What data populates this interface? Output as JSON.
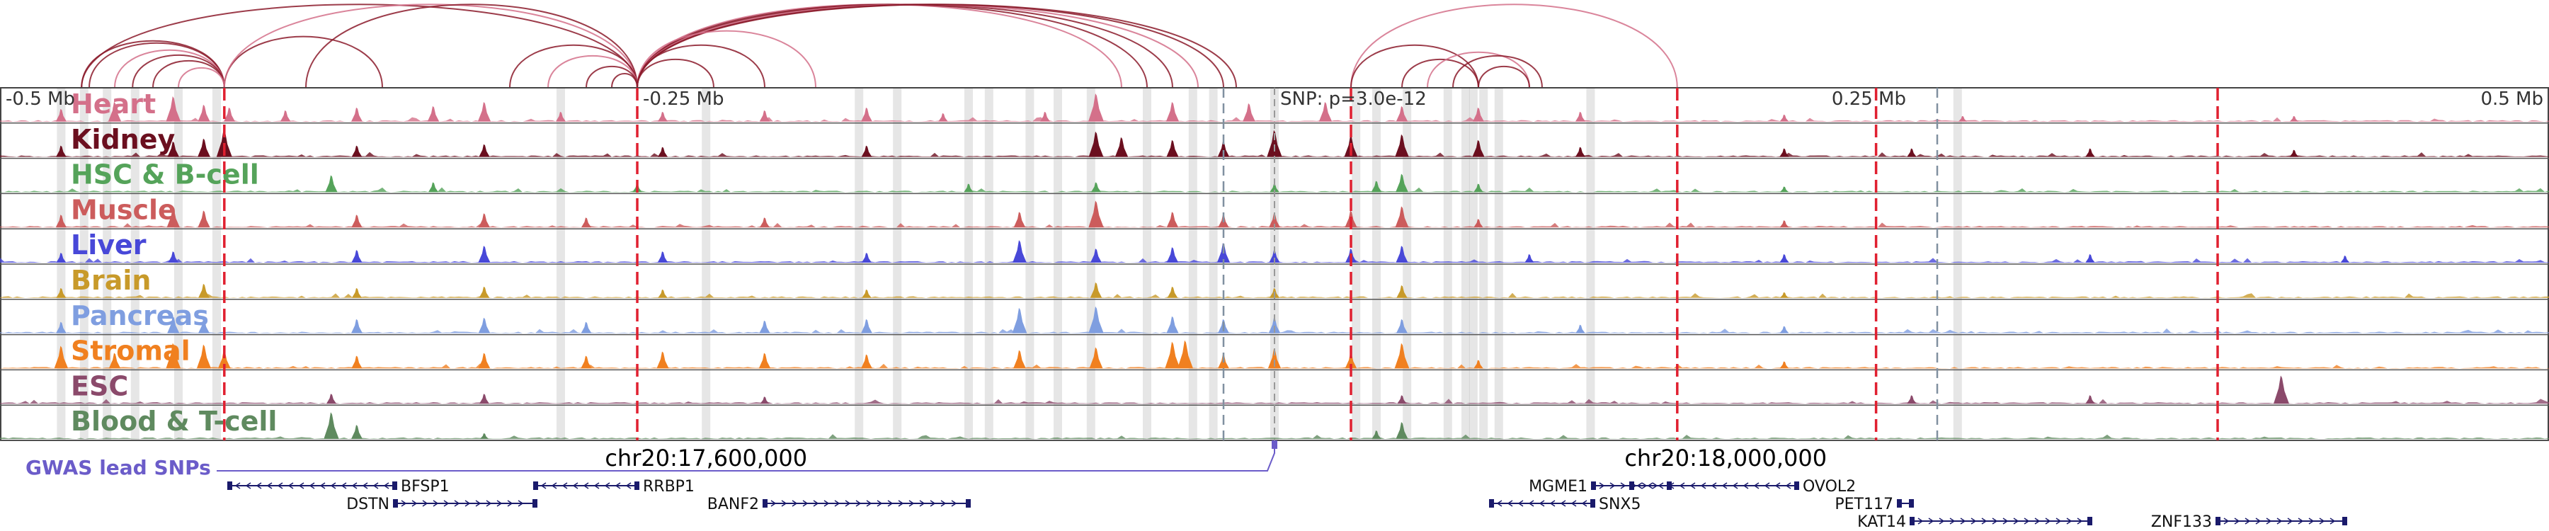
{
  "chart_data": {
    "type": "genome-browser",
    "chromosome": "chr20",
    "xlim_offset_mb": [
      -0.5,
      0.5
    ],
    "scale_labels": [
      {
        "text": "-0.5 Mb",
        "offset_mb": -0.5,
        "align": "start"
      },
      {
        "text": "-0.25 Mb",
        "offset_mb": -0.25,
        "align": "start"
      },
      {
        "text": "0.25 Mb",
        "offset_mb": 0.25,
        "align": "end"
      },
      {
        "text": "0.5 Mb",
        "offset_mb": 0.5,
        "align": "end"
      }
    ],
    "snp_label": "SNP: p=3.0e-12",
    "snp_offset_mb": 0.0,
    "coordinate_labels": [
      {
        "text": "chr20:17,600,000",
        "offset_mb": -0.223
      },
      {
        "text": "chr20:18,000,000",
        "offset_mb": 0.177
      }
    ],
    "tracks": [
      {
        "name": "Heart",
        "color": "#d4708a",
        "peaks": [
          [
            -0.476,
            0.45
          ],
          [
            -0.455,
            0.7
          ],
          [
            -0.432,
            0.9
          ],
          [
            -0.42,
            0.6
          ],
          [
            -0.41,
            0.5
          ],
          [
            -0.388,
            0.4
          ],
          [
            -0.36,
            0.5
          ],
          [
            -0.33,
            0.55
          ],
          [
            -0.31,
            0.7
          ],
          [
            -0.28,
            0.35
          ],
          [
            -0.24,
            0.35
          ],
          [
            -0.2,
            0.4
          ],
          [
            -0.16,
            0.5
          ],
          [
            -0.13,
            0.3
          ],
          [
            -0.09,
            0.35
          ],
          [
            -0.07,
            1.0
          ],
          [
            -0.04,
            0.7
          ],
          [
            -0.01,
            0.65
          ],
          [
            0.02,
            0.7
          ],
          [
            0.05,
            0.55
          ],
          [
            0.08,
            0.5
          ],
          [
            0.12,
            0.35
          ],
          [
            0.2,
            0.25
          ],
          [
            0.27,
            0.2
          ],
          [
            0.4,
            0.2
          ]
        ]
      },
      {
        "name": "Kidney",
        "color": "#6b0f1f",
        "peaks": [
          [
            -0.476,
            0.4
          ],
          [
            -0.432,
            0.55
          ],
          [
            -0.42,
            0.65
          ],
          [
            -0.412,
            1.0
          ],
          [
            -0.36,
            0.4
          ],
          [
            -0.31,
            0.45
          ],
          [
            -0.24,
            0.35
          ],
          [
            -0.16,
            0.4
          ],
          [
            -0.07,
            0.9
          ],
          [
            -0.06,
            0.7
          ],
          [
            -0.04,
            0.6
          ],
          [
            -0.02,
            0.55
          ],
          [
            0.0,
            0.95
          ],
          [
            0.03,
            0.75
          ],
          [
            0.05,
            0.8
          ],
          [
            0.08,
            0.6
          ],
          [
            0.12,
            0.35
          ],
          [
            0.2,
            0.3
          ],
          [
            0.25,
            0.3
          ],
          [
            0.32,
            0.3
          ],
          [
            0.4,
            0.25
          ]
        ]
      },
      {
        "name": "HSC & B-cell",
        "color": "#55a35a",
        "peaks": [
          [
            -0.37,
            0.6
          ],
          [
            -0.33,
            0.35
          ],
          [
            -0.25,
            0.3
          ],
          [
            -0.12,
            0.3
          ],
          [
            -0.07,
            0.35
          ],
          [
            0.0,
            0.3
          ],
          [
            0.04,
            0.4
          ],
          [
            0.05,
            0.65
          ],
          [
            0.08,
            0.3
          ],
          [
            0.2,
            0.2
          ]
        ]
      },
      {
        "name": "Muscle",
        "color": "#cc5c5c",
        "peaks": [
          [
            -0.476,
            0.45
          ],
          [
            -0.432,
            0.7
          ],
          [
            -0.42,
            0.6
          ],
          [
            -0.36,
            0.45
          ],
          [
            -0.31,
            0.5
          ],
          [
            -0.27,
            0.35
          ],
          [
            -0.2,
            0.35
          ],
          [
            -0.1,
            0.55
          ],
          [
            -0.07,
            0.95
          ],
          [
            -0.04,
            0.55
          ],
          [
            -0.02,
            0.45
          ],
          [
            0.0,
            0.5
          ],
          [
            0.03,
            0.6
          ],
          [
            0.05,
            0.75
          ],
          [
            0.08,
            0.3
          ],
          [
            0.2,
            0.25
          ]
        ]
      },
      {
        "name": "Liver",
        "color": "#4848d8",
        "peaks": [
          [
            -0.476,
            0.35
          ],
          [
            -0.432,
            0.4
          ],
          [
            -0.36,
            0.45
          ],
          [
            -0.31,
            0.6
          ],
          [
            -0.24,
            0.4
          ],
          [
            -0.16,
            0.35
          ],
          [
            -0.1,
            0.8
          ],
          [
            -0.07,
            0.5
          ],
          [
            -0.04,
            0.55
          ],
          [
            -0.02,
            0.7
          ],
          [
            0.0,
            0.45
          ],
          [
            0.03,
            0.5
          ],
          [
            0.05,
            0.6
          ],
          [
            0.1,
            0.3
          ],
          [
            0.2,
            0.3
          ],
          [
            0.32,
            0.3
          ],
          [
            0.42,
            0.25
          ]
        ]
      },
      {
        "name": "Brain",
        "color": "#c89a2a",
        "peaks": [
          [
            -0.476,
            0.35
          ],
          [
            -0.42,
            0.5
          ],
          [
            -0.36,
            0.35
          ],
          [
            -0.31,
            0.4
          ],
          [
            -0.24,
            0.3
          ],
          [
            -0.16,
            0.3
          ],
          [
            -0.07,
            0.55
          ],
          [
            -0.04,
            0.4
          ],
          [
            0.0,
            0.35
          ],
          [
            0.05,
            0.45
          ],
          [
            0.2,
            0.2
          ]
        ]
      },
      {
        "name": "Pancreas",
        "color": "#7f9ee0",
        "peaks": [
          [
            -0.476,
            0.4
          ],
          [
            -0.432,
            0.6
          ],
          [
            -0.42,
            0.5
          ],
          [
            -0.36,
            0.5
          ],
          [
            -0.31,
            0.55
          ],
          [
            -0.27,
            0.4
          ],
          [
            -0.2,
            0.45
          ],
          [
            -0.16,
            0.5
          ],
          [
            -0.1,
            0.9
          ],
          [
            -0.07,
            0.95
          ],
          [
            -0.04,
            0.6
          ],
          [
            -0.02,
            0.5
          ],
          [
            0.0,
            0.55
          ],
          [
            0.05,
            0.5
          ],
          [
            0.12,
            0.3
          ],
          [
            0.2,
            0.25
          ]
        ]
      },
      {
        "name": "Stromal",
        "color": "#f08020",
        "peaks": [
          [
            -0.476,
            0.8
          ],
          [
            -0.455,
            0.55
          ],
          [
            -0.432,
            0.9
          ],
          [
            -0.42,
            0.85
          ],
          [
            -0.412,
            0.65
          ],
          [
            -0.36,
            0.45
          ],
          [
            -0.31,
            0.55
          ],
          [
            -0.27,
            0.45
          ],
          [
            -0.24,
            0.6
          ],
          [
            -0.2,
            0.55
          ],
          [
            -0.16,
            0.5
          ],
          [
            -0.1,
            0.65
          ],
          [
            -0.07,
            0.75
          ],
          [
            -0.04,
            0.95
          ],
          [
            -0.035,
            1.0
          ],
          [
            -0.02,
            0.5
          ],
          [
            0.0,
            0.7
          ],
          [
            0.03,
            0.55
          ],
          [
            0.05,
            0.9
          ],
          [
            0.08,
            0.3
          ],
          [
            0.2,
            0.25
          ]
        ]
      },
      {
        "name": "ESC",
        "color": "#8b4a6b",
        "peaks": [
          [
            -0.37,
            0.35
          ],
          [
            -0.31,
            0.35
          ],
          [
            -0.2,
            0.25
          ],
          [
            0.05,
            0.3
          ],
          [
            0.25,
            0.3
          ],
          [
            0.32,
            0.3
          ],
          [
            0.395,
            1.0
          ]
        ]
      },
      {
        "name": "Blood & T-cell",
        "color": "#5f8a5f",
        "peaks": [
          [
            -0.37,
            0.95
          ],
          [
            -0.36,
            0.5
          ],
          [
            -0.31,
            0.2
          ],
          [
            0.04,
            0.3
          ],
          [
            0.05,
            0.6
          ]
        ]
      }
    ],
    "highlight_regions_mb": [
      -0.476,
      -0.467,
      -0.458,
      -0.447,
      -0.43,
      -0.415,
      -0.28,
      -0.223,
      -0.163,
      -0.148,
      -0.12,
      -0.112,
      -0.096,
      -0.085,
      -0.072,
      -0.05,
      -0.032,
      -0.024,
      0.0,
      0.032,
      0.04,
      0.052,
      0.068,
      0.075,
      0.078,
      0.082,
      0.088,
      0.124,
      0.268
    ],
    "red_dashed_mb": [
      -0.412,
      -0.25,
      0.03,
      0.158,
      0.236,
      0.37
    ],
    "gray_dashed_mb": [
      -0.02,
      0.26
    ],
    "loops": {
      "color": "#8b1a2a",
      "light_color": "#d4708a",
      "anchors_mb": [
        [
          -0.468,
          -0.412
        ],
        [
          -0.465,
          -0.412
        ],
        [
          -0.455,
          -0.412
        ],
        [
          -0.448,
          -0.412
        ],
        [
          -0.44,
          -0.412
        ],
        [
          -0.43,
          -0.412
        ],
        [
          -0.412,
          -0.35
        ],
        [
          -0.468,
          -0.25
        ],
        [
          -0.412,
          -0.25
        ],
        [
          -0.38,
          -0.25
        ],
        [
          -0.3,
          -0.25
        ],
        [
          -0.285,
          -0.25
        ],
        [
          -0.27,
          -0.25
        ],
        [
          -0.26,
          -0.25
        ],
        [
          -0.25,
          -0.06
        ],
        [
          -0.25,
          -0.05
        ],
        [
          -0.25,
          -0.04
        ],
        [
          -0.25,
          -0.03
        ],
        [
          -0.25,
          -0.02
        ],
        [
          -0.25,
          -0.015
        ],
        [
          -0.25,
          -0.18
        ],
        [
          -0.25,
          -0.2
        ],
        [
          -0.25,
          -0.22
        ],
        [
          0.03,
          0.158
        ],
        [
          0.03,
          0.08
        ],
        [
          0.05,
          0.08
        ],
        [
          0.06,
          0.1
        ],
        [
          0.07,
          0.105
        ],
        [
          0.08,
          0.1
        ]
      ]
    },
    "gwas": {
      "label": "GWAS lead SNPs",
      "color": "#6b5cc9",
      "snp_offset_mb": 0.0
    },
    "genes": [
      {
        "name": "BFSP1",
        "start_mb": -0.41,
        "end_mb": -0.345,
        "row": 0,
        "strand": "-",
        "label_side": "right"
      },
      {
        "name": "DSTN",
        "start_mb": -0.345,
        "end_mb": -0.29,
        "row": 1,
        "strand": "+",
        "label_side": "left"
      },
      {
        "name": "RRBP1",
        "start_mb": -0.29,
        "end_mb": -0.25,
        "row": 0,
        "strand": "-",
        "label_side": "right"
      },
      {
        "name": "BANF2",
        "start_mb": -0.2,
        "end_mb": -0.12,
        "row": 1,
        "strand": "+",
        "label_side": "left"
      },
      {
        "name": "MGME1",
        "start_mb": 0.125,
        "end_mb": 0.155,
        "row": 0,
        "strand": "+",
        "label_side": "left"
      },
      {
        "name": "SNX5",
        "start_mb": 0.085,
        "end_mb": 0.125,
        "row": 1,
        "strand": "-",
        "label_side": "right"
      },
      {
        "name": "OVOL2",
        "start_mb": 0.14,
        "end_mb": 0.205,
        "row": 0,
        "strand": "-",
        "label_side": "right"
      },
      {
        "name": "PET117",
        "start_mb": 0.245,
        "end_mb": 0.25,
        "row": 2,
        "strand": "+",
        "label_side": "left"
      },
      {
        "name": "KAT14",
        "start_mb": 0.25,
        "end_mb": 0.32,
        "row": 3,
        "strand": "+",
        "label_side": "left"
      },
      {
        "name": "ZNF133",
        "start_mb": 0.37,
        "end_mb": 0.42,
        "row": 3,
        "strand": "+",
        "label_side": "left"
      }
    ]
  }
}
